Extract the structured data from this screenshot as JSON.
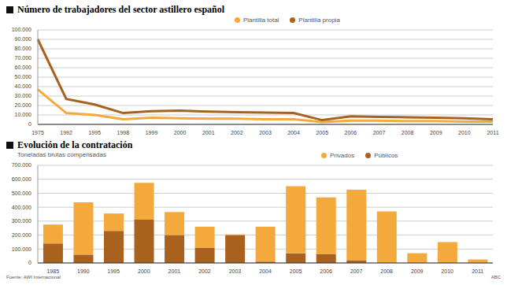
{
  "chart_data": [
    {
      "type": "line",
      "title": "Número de trabajadores del sector astillero español",
      "categories": [
        "1975",
        "1992",
        "1995",
        "1998",
        "1999",
        "2000",
        "2001",
        "2002",
        "2003",
        "2004",
        "2005",
        "2006",
        "2007",
        "2008",
        "2009",
        "2010",
        "2011"
      ],
      "series": [
        {
          "name": "Plantilla total",
          "color": "#f4a93c",
          "values": [
            37000,
            12000,
            10000,
            5500,
            7000,
            6500,
            6000,
            6000,
            5500,
            5500,
            2500,
            4000,
            4000,
            3500,
            3500,
            3000,
            3000
          ]
        },
        {
          "name": "Plantilla propia",
          "color": "#a8621e",
          "values": [
            90000,
            27000,
            21000,
            12000,
            14000,
            14500,
            13500,
            13000,
            12500,
            12000,
            4500,
            8500,
            8000,
            7500,
            7000,
            6500,
            5500
          ]
        }
      ],
      "ylim": [
        0,
        100000
      ],
      "yticks": [
        0,
        {
          "value": 10000,
          "label": "10.000"
        },
        {
          "value": 20000,
          "label": "20.000"
        },
        {
          "value": 30000,
          "label": "30.000"
        },
        {
          "value": 40000,
          "label": "40.000"
        },
        {
          "value": 50000,
          "label": "50.000"
        },
        {
          "value": 60000,
          "label": "60.000"
        },
        {
          "value": 70000,
          "label": "70.000"
        },
        {
          "value": 80000,
          "label": "80.000"
        },
        {
          "value": 90000,
          "label": "90.000"
        },
        {
          "value": 100000,
          "label": "100.000"
        }
      ],
      "grid": true,
      "legend": "top"
    },
    {
      "type": "bar",
      "title": "Evolución de la contratación",
      "subtitle": "Toneladas brutas compensadas",
      "stacked": true,
      "categories": [
        "1985",
        "1990",
        "1995",
        "2000",
        "2001",
        "2002",
        "2003",
        "2004",
        "2005",
        "2006",
        "2007",
        "2008",
        "2009",
        "2010",
        "2011"
      ],
      "series": [
        {
          "name": "Privados",
          "color": "#f4a93c",
          "values": [
            135000,
            375000,
            125000,
            265000,
            165000,
            150000,
            5000,
            250000,
            480000,
            405000,
            505000,
            370000,
            70000,
            150000,
            25000
          ]
        },
        {
          "name": "Públicos",
          "color": "#a8621e",
          "values": [
            140000,
            60000,
            230000,
            310000,
            200000,
            110000,
            200000,
            10000,
            70000,
            65000,
            20000,
            0,
            0,
            0,
            0
          ]
        }
      ],
      "ylim": [
        0,
        700000
      ],
      "yticks": [
        0,
        {
          "value": 100000,
          "label": "100.000"
        },
        {
          "value": 200000,
          "label": "200.000"
        },
        {
          "value": 300000,
          "label": "300.000"
        },
        {
          "value": 400000,
          "label": "400.000"
        },
        {
          "value": 500000,
          "label": "500.000"
        },
        {
          "value": 600000,
          "label": "600.000"
        },
        {
          "value": 700000,
          "label": "700.000"
        }
      ],
      "grid": true,
      "legend": "top"
    }
  ],
  "footer": {
    "source": "Fuente: AWI Internacional",
    "credit": "ABC"
  }
}
